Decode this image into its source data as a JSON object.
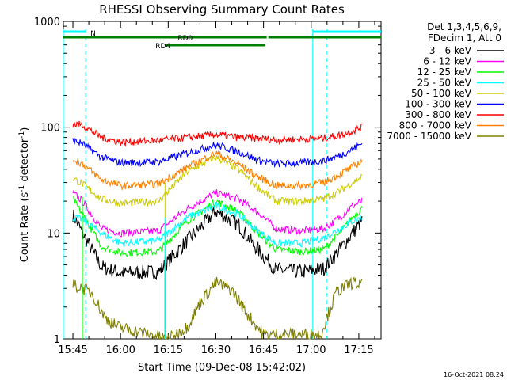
{
  "chart_data": {
    "type": "line",
    "title": "RHESSI Observing Summary Count Rates",
    "xlabel": "Start Time (09-Dec-08 15:42:02)",
    "ylabel_main": "Count Rate (s",
    "ylabel_sup1": "-1",
    "ylabel_mid": " detector",
    "ylabel_sup2": "-1",
    "ylabel_end": ")",
    "yscale": "log",
    "ylim": [
      1,
      1000
    ],
    "xlim_minutes": [
      -3,
      97
    ],
    "x_ticks": [
      {
        "label": "15:45",
        "min": 0
      },
      {
        "label": "16:00",
        "min": 15
      },
      {
        "label": "16:15",
        "min": 30
      },
      {
        "label": "16:30",
        "min": 45
      },
      {
        "label": "16:45",
        "min": 60
      },
      {
        "label": "17:00",
        "min": 75
      },
      {
        "label": "17:15",
        "min": 90
      }
    ],
    "y_ticks": [
      {
        "label": "1",
        "v": 1
      },
      {
        "label": "10",
        "v": 10
      },
      {
        "label": "100",
        "v": 100
      },
      {
        "label": "1000",
        "v": 1000
      }
    ],
    "legend_header": [
      "Det 1,3,4,5,6,9,",
      "FDecim 1, Att 0"
    ],
    "series": [
      {
        "name": "3 - 6 keV",
        "color": "#000000",
        "x": [
          0,
          3,
          9,
          15,
          27,
          36,
          45,
          52,
          59,
          64,
          72,
          79,
          84,
          88,
          91
        ],
        "values": [
          15,
          10,
          4.8,
          4.2,
          4.3,
          8.5,
          16,
          12,
          6.5,
          4.5,
          4.3,
          4.6,
          7,
          10,
          13
        ]
      },
      {
        "name": "6 - 12 keV",
        "color": "#ff00ff",
        "x": [
          0,
          3,
          9,
          15,
          27,
          36,
          45,
          52,
          59,
          64,
          72,
          79,
          84,
          88,
          91
        ],
        "values": [
          24,
          20,
          11,
          10,
          10.5,
          17,
          24,
          21,
          15,
          11,
          10.5,
          11,
          14,
          18,
          20
        ]
      },
      {
        "name": "12 - 25 keV",
        "color": "#00ff00",
        "x": [
          0,
          3,
          9,
          15,
          27,
          36,
          45,
          52,
          59,
          64,
          72,
          79,
          84,
          88,
          91
        ],
        "values": [
          21,
          15,
          7.5,
          6.5,
          6.7,
          13,
          20,
          16,
          9.5,
          7,
          6.7,
          7,
          10,
          14,
          17
        ]
      },
      {
        "name": "25 - 50 keV",
        "color": "#00ffff",
        "x": [
          0,
          3,
          9,
          15,
          27,
          36,
          45,
          52,
          59,
          64,
          72,
          79,
          84,
          88,
          91
        ],
        "values": [
          14,
          13.5,
          10,
          8,
          8.5,
          14,
          18,
          15,
          10,
          8,
          8,
          9,
          11,
          13,
          14
        ]
      },
      {
        "name": "50 - 100 keV",
        "color": "#cccc00",
        "x": [
          0,
          3,
          9,
          15,
          27,
          36,
          45,
          52,
          59,
          64,
          72,
          79,
          84,
          88,
          91
        ],
        "values": [
          33,
          29,
          21,
          19,
          20,
          38,
          52,
          40,
          26,
          20,
          20,
          21,
          25,
          30,
          34
        ]
      },
      {
        "name": "100 - 300 keV",
        "color": "#0000ff",
        "x": [
          0,
          3,
          9,
          15,
          27,
          36,
          45,
          52,
          59,
          64,
          72,
          79,
          84,
          88,
          91
        ],
        "values": [
          75,
          70,
          52,
          46,
          47,
          57,
          68,
          59,
          48,
          45,
          46,
          48,
          54,
          62,
          70
        ]
      },
      {
        "name": "300 - 800 keV",
        "color": "#ff0000",
        "x": [
          0,
          3,
          9,
          15,
          27,
          36,
          45,
          52,
          59,
          64,
          72,
          79,
          84,
          88,
          91
        ],
        "values": [
          107,
          105,
          80,
          72,
          75,
          80,
          85,
          80,
          78,
          76,
          77,
          79,
          84,
          92,
          100
        ]
      },
      {
        "name": "800 - 7000 keV",
        "color": "#ff8000",
        "x": [
          0,
          3,
          9,
          15,
          27,
          36,
          45,
          52,
          59,
          64,
          72,
          79,
          84,
          88,
          91
        ],
        "values": [
          50,
          45,
          32,
          28,
          29,
          42,
          57,
          45,
          33,
          28,
          28,
          30,
          36,
          42,
          48
        ]
      },
      {
        "name": "7000 - 15000 keV",
        "color": "#808000",
        "x": [
          0,
          3,
          6,
          10,
          14,
          30,
          36,
          40,
          45,
          50,
          55,
          60,
          78,
          83,
          88,
          91
        ],
        "values": [
          3.2,
          3.0,
          2.7,
          1.6,
          1.3,
          1.0,
          1.3,
          2.2,
          3.4,
          2.9,
          1.7,
          1.1,
          1.1,
          2.8,
          3.4,
          3.2
        ]
      }
    ],
    "annotations": {
      "top_cyan_label": "N",
      "rd0_label": "RD0",
      "rd4_label": "RD4"
    },
    "footer_timestamp": "16-Oct-2021 08:24"
  }
}
